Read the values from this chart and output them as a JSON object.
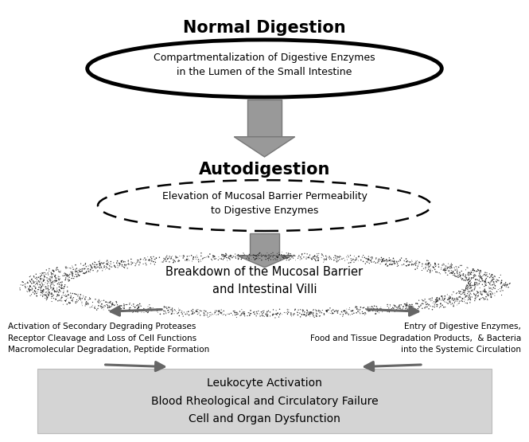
{
  "title": "Normal Digestion",
  "autodigestion_label": "Autodigestion",
  "ellipse1_text": "Compartmentalization of Digestive Enzymes\nin the Lumen of the Small Intestine",
  "ellipse2_text": "Elevation of Mucosal Barrier Permeability\nto Digestive Enzymes",
  "mucosal_text": "Breakdown of the Mucosal Barrier\nand Intestinal Villi",
  "left_text": "Activation of Secondary Degrading Proteases\nReceptor Cleavage and Loss of Cell Functions\nMacromolecular Degradation, Peptide Formation",
  "right_text": "Entry of Digestive Enzymes,\nFood and Tissue Degradation Products,  & Bacteria\ninto the Systemic Circulation",
  "box_text": "Leukocyte Activation\nBlood Rheological and Circulatory Failure\nCell and Organ Dysfunction",
  "bg_color": "#ffffff",
  "box_fill": "#d4d4d4",
  "arrow_color": "#999999",
  "arrow_edge": "#777777",
  "diag_arrow_color": "#666666",
  "ellipse1_lw": 3.5,
  "ellipse2_lw": 1.8
}
